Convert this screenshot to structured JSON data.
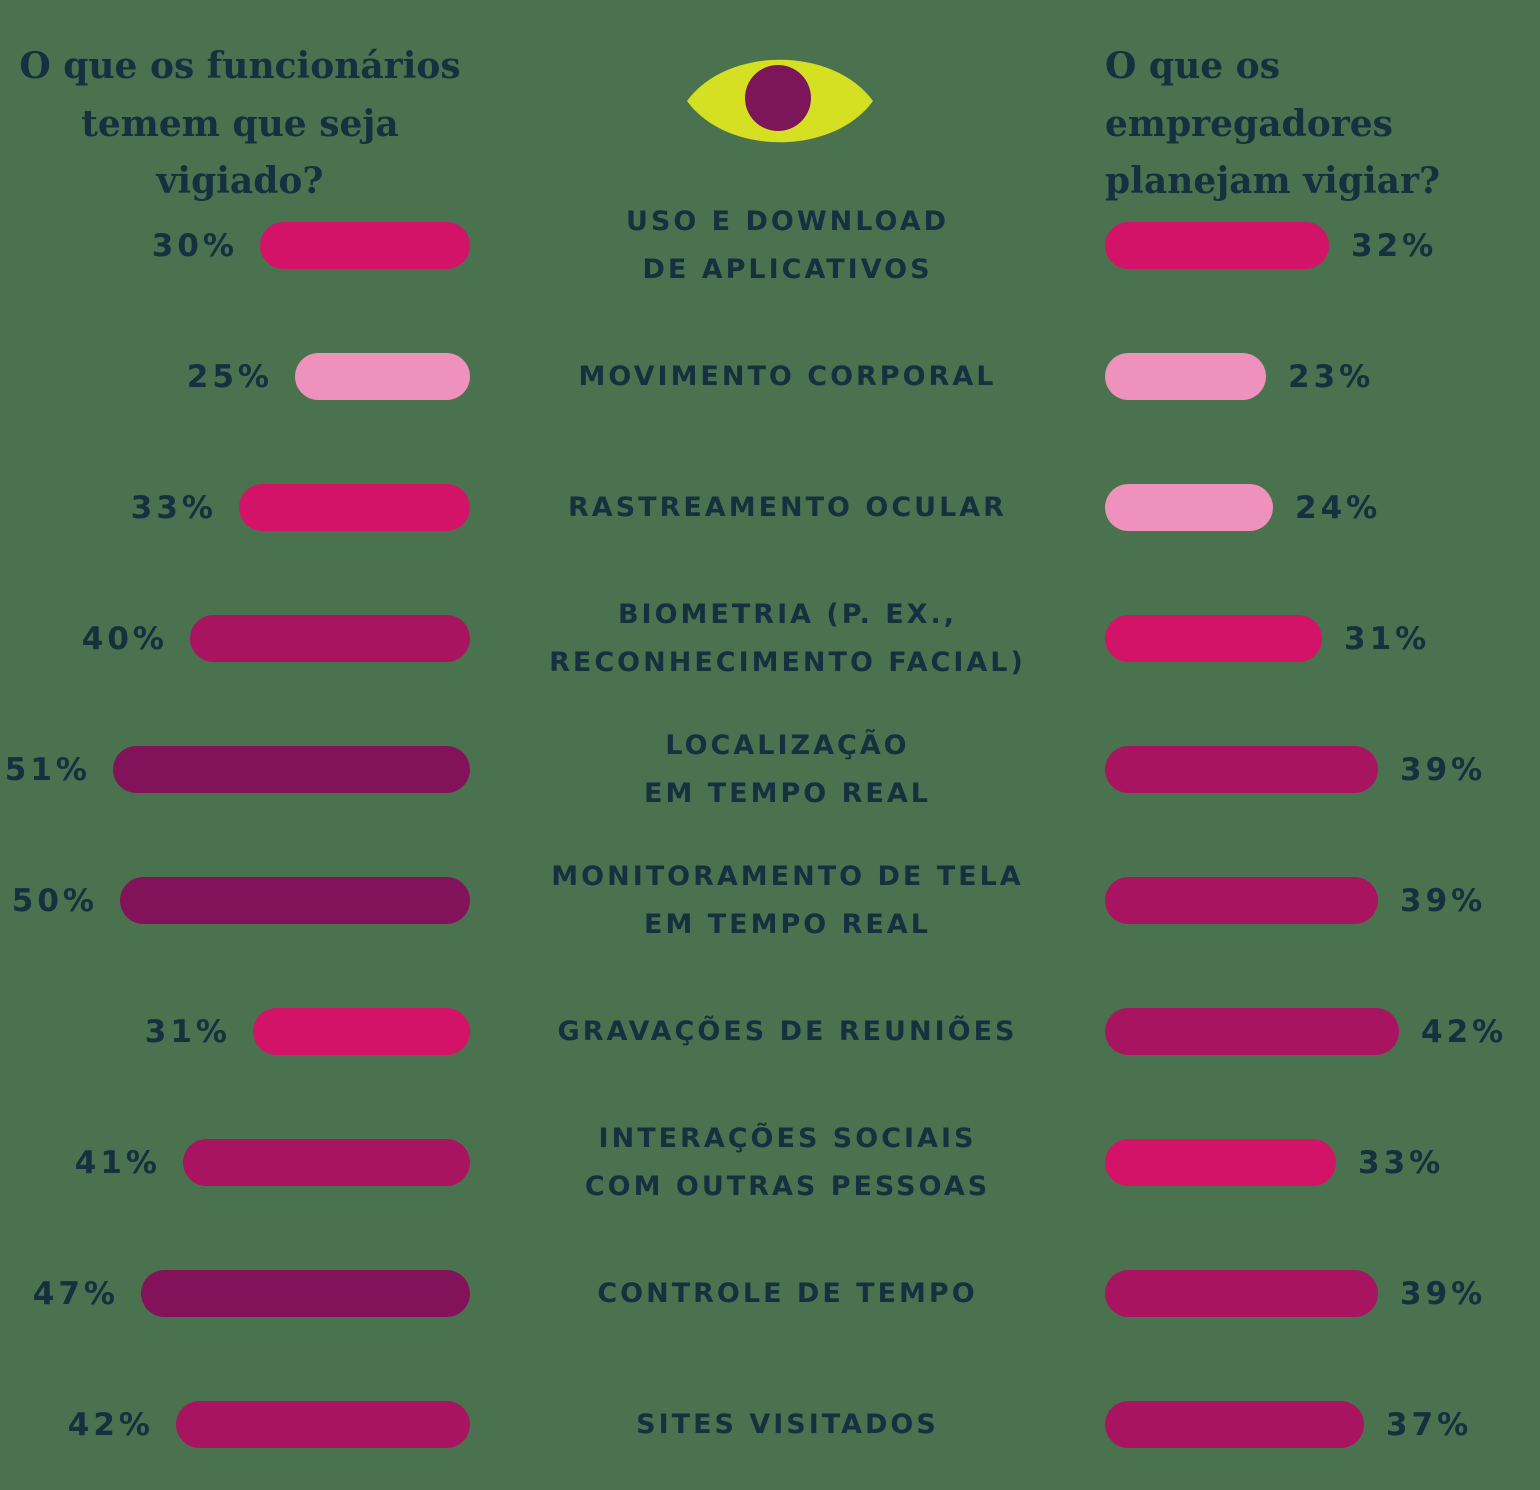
{
  "header": {
    "left_title": "O que os funcionários\ntemem que seja vigiado?",
    "right_title": "O que os empregadores\nplanejam vigiar?",
    "eye_icon": "eye-icon"
  },
  "colors": {
    "background": "#4a724f",
    "text_navy": "#15303f",
    "bright_pink": "#d31368",
    "light_pink": "#ee92bd",
    "magenta": "#a81460",
    "dark_purple": "#82135a",
    "eye_body": "#d5e023",
    "eye_pupil": "#7c1659"
  },
  "chart_data": {
    "type": "bar",
    "orientation": "horizontal-mirrored",
    "unit": "%",
    "value_range": [
      0,
      51
    ],
    "categories": [
      "USO E DOWNLOAD DE APLICATIVOS",
      "MOVIMENTO CORPORAL",
      "RASTREAMENTO OCULAR",
      "BIOMETRIA (P. EX., RECONHECIMENTO FACIAL)",
      "LOCALIZAÇÃO EM TEMPO REAL",
      "MONITORAMENTO DE TELA EM TEMPO REAL",
      "GRAVAÇÕES DE REUNIÕES",
      "INTERAÇÕES SOCIAIS COM OUTRAS PESSOAS",
      "CONTROLE DE TEMPO",
      "SITES VISITADOS"
    ],
    "series": [
      {
        "name": "O que os funcionários temem que seja vigiado?",
        "side": "left",
        "values": [
          30,
          25,
          33,
          40,
          51,
          50,
          31,
          41,
          47,
          42
        ]
      },
      {
        "name": "O que os empregadores planejam vigiar?",
        "side": "right",
        "values": [
          32,
          23,
          24,
          31,
          39,
          39,
          42,
          33,
          39,
          37
        ]
      }
    ],
    "legend": "none",
    "grid": false
  },
  "rows": [
    {
      "category": "USO E DOWNLOAD\nDE APLICATIVOS",
      "left": {
        "value": 30,
        "label": "30%",
        "color": "bright_pink"
      },
      "right": {
        "value": 32,
        "label": "32%",
        "color": "bright_pink"
      }
    },
    {
      "category": "MOVIMENTO CORPORAL",
      "left": {
        "value": 25,
        "label": "25%",
        "color": "light_pink"
      },
      "right": {
        "value": 23,
        "label": "23%",
        "color": "light_pink"
      }
    },
    {
      "category": "RASTREAMENTO OCULAR",
      "left": {
        "value": 33,
        "label": "33%",
        "color": "bright_pink"
      },
      "right": {
        "value": 24,
        "label": "24%",
        "color": "light_pink"
      }
    },
    {
      "category": "BIOMETRIA (P. EX.,\nRECONHECIMENTO FACIAL)",
      "left": {
        "value": 40,
        "label": "40%",
        "color": "magenta"
      },
      "right": {
        "value": 31,
        "label": "31%",
        "color": "bright_pink"
      }
    },
    {
      "category": "LOCALIZAÇÃO\nEM TEMPO REAL",
      "left": {
        "value": 51,
        "label": "51%",
        "color": "dark_purple"
      },
      "right": {
        "value": 39,
        "label": "39%",
        "color": "magenta"
      }
    },
    {
      "category": "MONITORAMENTO DE TELA\nEM TEMPO REAL",
      "left": {
        "value": 50,
        "label": "50%",
        "color": "dark_purple"
      },
      "right": {
        "value": 39,
        "label": "39%",
        "color": "magenta"
      }
    },
    {
      "category": "GRAVAÇÕES DE REUNIÕES",
      "left": {
        "value": 31,
        "label": "31%",
        "color": "bright_pink"
      },
      "right": {
        "value": 42,
        "label": "42%",
        "color": "magenta"
      }
    },
    {
      "category": "INTERAÇÕES SOCIAIS\nCOM OUTRAS PESSOAS",
      "left": {
        "value": 41,
        "label": "41%",
        "color": "magenta"
      },
      "right": {
        "value": 33,
        "label": "33%",
        "color": "bright_pink"
      }
    },
    {
      "category": "CONTROLE DE TEMPO",
      "left": {
        "value": 47,
        "label": "47%",
        "color": "dark_purple"
      },
      "right": {
        "value": 39,
        "label": "39%",
        "color": "magenta"
      }
    },
    {
      "category": "SITES VISITADOS",
      "left": {
        "value": 42,
        "label": "42%",
        "color": "magenta"
      },
      "right": {
        "value": 37,
        "label": "37%",
        "color": "magenta"
      }
    }
  ]
}
